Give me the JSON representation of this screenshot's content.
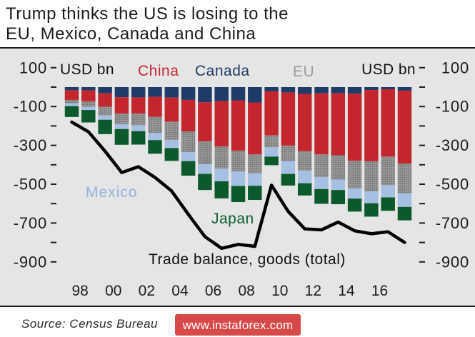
{
  "chart_data": {
    "type": "bar",
    "stacked": true,
    "title": [
      "Trump thinks the US is losing to the",
      "EU, Mexico, Canada and China"
    ],
    "ylabel": "USD bn",
    "ylim": [
      -1000,
      200
    ],
    "y_ticks": [
      100,
      -100,
      -300,
      -500,
      -700,
      -900
    ],
    "x": [
      1997,
      1998,
      1999,
      2000,
      2001,
      2002,
      2003,
      2004,
      2005,
      2006,
      2007,
      2008,
      2009,
      2010,
      2011,
      2012,
      2013,
      2014,
      2015,
      2016,
      2017
    ],
    "x_ticks": [
      1998,
      2000,
      2002,
      2004,
      2006,
      2008,
      2010,
      2012,
      2014,
      2016
    ],
    "x_tick_labels": [
      "98",
      "00",
      "02",
      "04",
      "06",
      "08",
      "10",
      "12",
      "14",
      "16"
    ],
    "grid": false,
    "legend": "inline",
    "series": [
      {
        "name": "Canada",
        "color": "#1f3c68",
        "values": [
          -16,
          -17,
          -32,
          -52,
          -53,
          -50,
          -54,
          -66,
          -78,
          -72,
          -68,
          -79,
          -22,
          -28,
          -35,
          -32,
          -32,
          -34,
          -15,
          -11,
          -18
        ]
      },
      {
        "name": "China",
        "color": "#c4262e",
        "values": [
          -50,
          -57,
          -69,
          -84,
          -83,
          -103,
          -124,
          -162,
          -202,
          -234,
          -259,
          -268,
          -227,
          -273,
          -295,
          -315,
          -319,
          -345,
          -367,
          -347,
          -376
        ]
      },
      {
        "name": "EU",
        "color": "#8c8c8c",
        "values": [
          -17,
          -28,
          -44,
          -55,
          -61,
          -83,
          -95,
          -107,
          -117,
          -114,
          -107,
          -96,
          -61,
          -80,
          -100,
          -116,
          -125,
          -142,
          -155,
          -147,
          -152
        ]
      },
      {
        "name": "Mexico",
        "color": "#a6c0e4",
        "values": [
          -15,
          -16,
          -23,
          -25,
          -30,
          -37,
          -41,
          -46,
          -50,
          -65,
          -75,
          -65,
          -48,
          -66,
          -65,
          -62,
          -54,
          -53,
          -61,
          -63,
          -71
        ]
      },
      {
        "name": "Japan",
        "color": "#0c5a2c",
        "values": [
          -56,
          -64,
          -74,
          -81,
          -69,
          -70,
          -66,
          -75,
          -83,
          -88,
          -83,
          -73,
          -44,
          -60,
          -63,
          -76,
          -73,
          -67,
          -69,
          -69,
          -69
        ]
      }
    ],
    "line": {
      "name": "Trade balance, goods (total)",
      "color": "#000000",
      "values": [
        -180,
        -230,
        -330,
        -440,
        -410,
        -465,
        -535,
        -655,
        -770,
        -830,
        -810,
        -820,
        -505,
        -640,
        -730,
        -735,
        -695,
        -740,
        -755,
        -745,
        -800
      ]
    }
  },
  "footer": {
    "source": "Source: Census Bureau",
    "watermark": "www.instaforex.com"
  }
}
